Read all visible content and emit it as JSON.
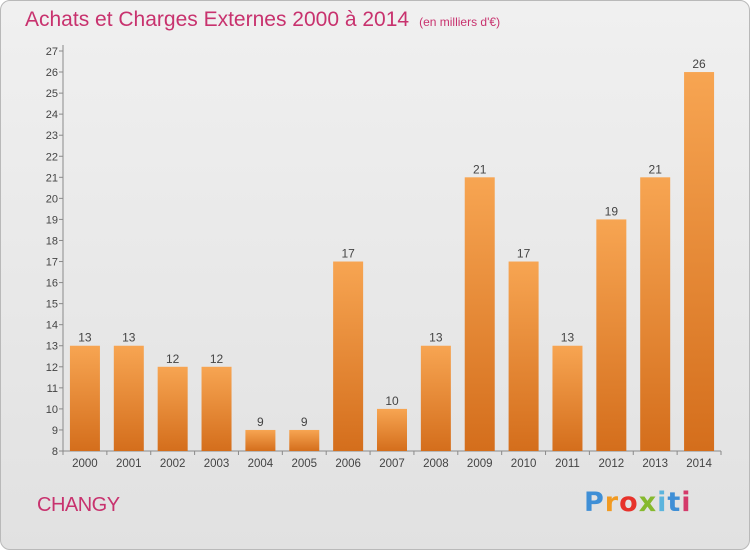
{
  "header": {
    "title": "Achats et Charges Externes 2000 à 2014",
    "subtitle": "(en milliers d'€)"
  },
  "footer": {
    "city": "CHANGY",
    "logo": [
      "P",
      "r",
      "o",
      "x",
      "i",
      "t",
      "i"
    ]
  },
  "colors": {
    "accent": "#c8326e",
    "bar_light": "#f7a552",
    "bar_dark": "#d46e1c"
  },
  "chart_data": {
    "type": "bar",
    "title": "Achats et Charges Externes 2000 à 2014",
    "xlabel": "",
    "ylabel": "",
    "ylim": [
      8,
      27
    ],
    "grid": false,
    "categories": [
      "2000",
      "2001",
      "2002",
      "2003",
      "2004",
      "2005",
      "2006",
      "2007",
      "2008",
      "2009",
      "2010",
      "2011",
      "2012",
      "2013",
      "2014"
    ],
    "values": [
      13,
      13,
      12,
      12,
      9,
      9,
      17,
      10,
      13,
      21,
      17,
      13,
      19,
      21,
      26
    ],
    "data_labels": [
      "13",
      "13",
      "12",
      "12",
      "9",
      "9",
      "17",
      "10",
      "13",
      "21",
      "17",
      "13",
      "19",
      "21",
      "26"
    ],
    "y_ticks": [
      8,
      9,
      10,
      11,
      12,
      13,
      14,
      15,
      16,
      17,
      18,
      19,
      20,
      21,
      22,
      23,
      24,
      25,
      26,
      27
    ]
  }
}
